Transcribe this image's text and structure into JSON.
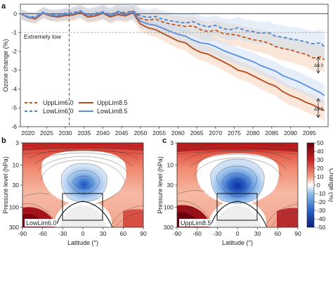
{
  "panels": {
    "a": {
      "letter": "a",
      "ylabel": "Ozone change (%)",
      "annotation": "Extremely low",
      "arrow_label_1": "Δ6.0",
      "arrow_label_2": "Δ8.5",
      "legend": [
        "UppLim6.0",
        "LowLim6.0",
        "UppLim8.5",
        "LowLim8.5"
      ]
    },
    "b": {
      "letter": "b",
      "inset_label": "LowLim6.0",
      "xlabel": "Latitude (°)",
      "ylabel": "Pressure level (hPa)"
    },
    "c": {
      "letter": "c",
      "inset_label": "UppLim8.5",
      "xlabel": "Latitude (°)",
      "ylabel": "Pressure level (hPa)"
    }
  },
  "colors": {
    "upp60": "#c0571d",
    "low60": "#4a86d0",
    "upp85": "#b24a1c",
    "low85": "#5b8fdc",
    "band_orange": "#f3c9ab",
    "band_blue": "#c6d9f2"
  },
  "chart_data": [
    {
      "type": "line",
      "xlim": [
        2018,
        2100
      ],
      "ylim": [
        -6,
        0.5
      ],
      "xticks": [
        "2020",
        "2025",
        "2030",
        "2035",
        "2040",
        "2045",
        "2050",
        "2055",
        "2060",
        "2065",
        "2070",
        "2075",
        "2080",
        "2085",
        "2090",
        "2095"
      ],
      "yticks": [
        "0",
        "-1",
        "-2",
        "-3",
        "-4",
        "-5",
        "-6"
      ],
      "reference_lines": {
        "zero": 0,
        "extremely_low": -1,
        "event_year": 2031
      },
      "x": [
        2018,
        2020,
        2022,
        2024,
        2026,
        2028,
        2030,
        2032,
        2034,
        2036,
        2038,
        2040,
        2042,
        2044,
        2046,
        2048,
        2050,
        2052,
        2054,
        2056,
        2058,
        2060,
        2062,
        2064,
        2066,
        2068,
        2070,
        2072,
        2074,
        2076,
        2078,
        2080,
        2082,
        2084,
        2086,
        2088,
        2090,
        2092,
        2094,
        2096,
        2098,
        2099
      ],
      "series": [
        {
          "name": "UppLim6.0",
          "style": "dashed",
          "values": [
            0,
            -0.18,
            -0.22,
            0.05,
            -0.08,
            -0.12,
            -0.05,
            -0.02,
            0.12,
            -0.1,
            -0.05,
            0.08,
            -0.12,
            0.1,
            -0.02,
            0.12,
            -0.25,
            -0.35,
            -0.28,
            -0.45,
            -0.55,
            -0.62,
            -0.68,
            -0.65,
            -0.85,
            -0.95,
            -0.88,
            -1.05,
            -1.1,
            -1.15,
            -1.28,
            -1.38,
            -1.45,
            -1.55,
            -1.75,
            -1.85,
            -1.92,
            -2.05,
            -2.15,
            -2.35,
            -2.3,
            -2.45
          ]
        },
        {
          "name": "LowLim6.0",
          "style": "dashed",
          "values": [
            0,
            -0.15,
            -0.18,
            0.08,
            -0.05,
            -0.08,
            0.02,
            0.05,
            0.15,
            -0.05,
            0.02,
            0.1,
            -0.05,
            0.12,
            0.05,
            0.15,
            -0.12,
            -0.2,
            -0.15,
            -0.3,
            -0.38,
            -0.45,
            -0.5,
            -0.42,
            -0.6,
            -0.7,
            -0.62,
            -0.8,
            -0.85,
            -0.75,
            -0.9,
            -0.95,
            -1.05,
            -1.0,
            -1.2,
            -1.25,
            -1.35,
            -1.4,
            -1.5,
            -1.6,
            -1.55,
            -1.75
          ]
        },
        {
          "name": "UppLim8.5",
          "style": "solid",
          "values": [
            0,
            -0.2,
            -0.28,
            0.02,
            -0.12,
            -0.18,
            -0.1,
            -0.08,
            0.05,
            -0.18,
            -0.12,
            0.02,
            -0.18,
            -0.05,
            -0.12,
            0.05,
            -0.55,
            -0.75,
            -0.85,
            -1.05,
            -1.25,
            -1.45,
            -1.55,
            -1.85,
            -2.05,
            -2.15,
            -2.35,
            -2.55,
            -2.75,
            -3.0,
            -3.1,
            -3.3,
            -3.5,
            -3.7,
            -3.85,
            -4.15,
            -4.35,
            -4.5,
            -4.7,
            -4.85,
            -5.05,
            -5.15
          ]
        },
        {
          "name": "LowLim8.5",
          "style": "solid",
          "values": [
            0,
            -0.18,
            -0.22,
            0.05,
            -0.08,
            -0.12,
            -0.04,
            0.0,
            0.1,
            -0.08,
            -0.02,
            0.06,
            -0.1,
            0.02,
            -0.05,
            0.08,
            -0.4,
            -0.55,
            -0.62,
            -0.78,
            -0.95,
            -1.1,
            -1.2,
            -1.4,
            -1.55,
            -1.6,
            -1.75,
            -1.95,
            -2.1,
            -2.25,
            -2.4,
            -2.55,
            -2.75,
            -2.9,
            -3.05,
            -3.3,
            -3.45,
            -3.6,
            -3.8,
            -4.0,
            -4.2,
            -4.35
          ]
        }
      ]
    },
    {
      "type": "heatmap",
      "panel": "b",
      "xlim": [
        -90,
        90
      ],
      "xticks": [
        "-90",
        "-60",
        "-30",
        "0",
        "30",
        "60",
        "90"
      ],
      "ylim_hPa": [
        300,
        3
      ],
      "yticks": [
        "3",
        "10",
        "30",
        "100",
        "300"
      ],
      "box": {
        "lat": [
          -30,
          30
        ],
        "hPa": [
          25,
          100
        ]
      },
      "center_min_change": -35
    },
    {
      "type": "heatmap",
      "panel": "c",
      "xlim": [
        -90,
        90
      ],
      "xticks": [
        "-90",
        "-60",
        "-30",
        "0",
        "30",
        "60",
        "90"
      ],
      "ylim_hPa": [
        300,
        3
      ],
      "yticks": [
        "3",
        "10",
        "30",
        "100",
        "300"
      ],
      "box": {
        "lat": [
          -30,
          30
        ],
        "hPa": [
          25,
          100
        ]
      },
      "center_min_change": -50
    },
    {
      "type": "colorbar",
      "label": "Change (%)",
      "range": [
        -50,
        50
      ],
      "ticks": [
        "50",
        "40",
        "30",
        "20",
        "10",
        "0",
        "-10",
        "-20",
        "-30",
        "-40",
        "-50"
      ]
    }
  ]
}
